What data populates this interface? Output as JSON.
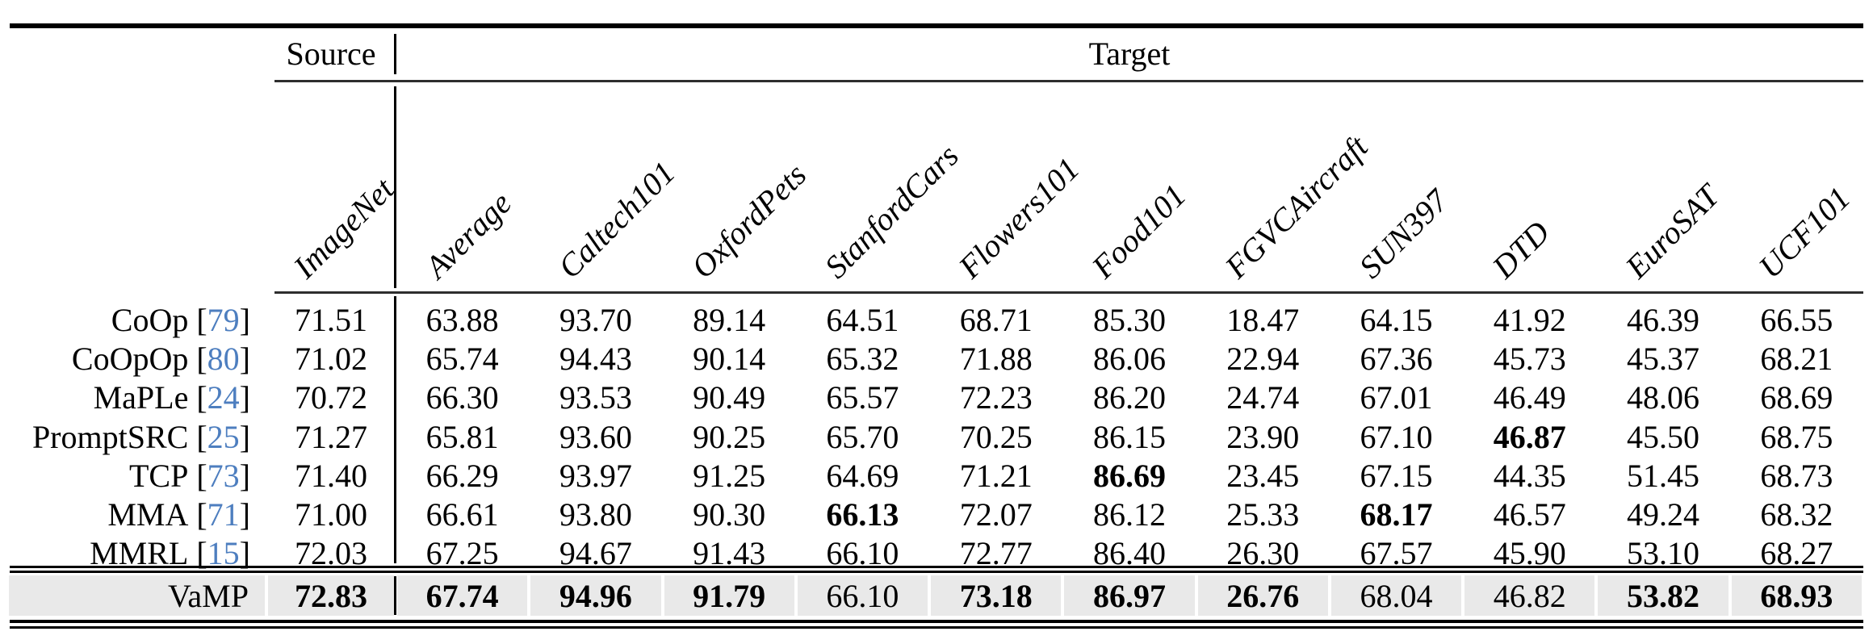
{
  "paper_table": {
    "header": {
      "source": "Source",
      "target": "Target"
    },
    "columns": {
      "source_col": "ImageNet",
      "target_cols": [
        "Average",
        "Caltech101",
        "OxfordPets",
        "StanfordCars",
        "Flowers101",
        "Food101",
        "FGVCAircraft",
        "SUN397",
        "DTD",
        "EuroSAT",
        "UCF101"
      ]
    },
    "ref_brackets": {
      "open": "[",
      "close": "]"
    },
    "rows": [
      {
        "method": "CoOp",
        "ref": "79",
        "highlight": false,
        "cells": [
          [
            "71.51",
            0
          ],
          [
            "63.88",
            0
          ],
          [
            "93.70",
            0
          ],
          [
            "89.14",
            0
          ],
          [
            "64.51",
            0
          ],
          [
            "68.71",
            0
          ],
          [
            "85.30",
            0
          ],
          [
            "18.47",
            0
          ],
          [
            "64.15",
            0
          ],
          [
            "41.92",
            0
          ],
          [
            "46.39",
            0
          ],
          [
            "66.55",
            0
          ]
        ]
      },
      {
        "method": "CoOpOp",
        "ref": "80",
        "highlight": false,
        "cells": [
          [
            "71.02",
            0
          ],
          [
            "65.74",
            0
          ],
          [
            "94.43",
            0
          ],
          [
            "90.14",
            0
          ],
          [
            "65.32",
            0
          ],
          [
            "71.88",
            0
          ],
          [
            "86.06",
            0
          ],
          [
            "22.94",
            0
          ],
          [
            "67.36",
            0
          ],
          [
            "45.73",
            0
          ],
          [
            "45.37",
            0
          ],
          [
            "68.21",
            0
          ]
        ]
      },
      {
        "method": "MaPLe",
        "ref": "24",
        "highlight": false,
        "cells": [
          [
            "70.72",
            0
          ],
          [
            "66.30",
            0
          ],
          [
            "93.53",
            0
          ],
          [
            "90.49",
            0
          ],
          [
            "65.57",
            0
          ],
          [
            "72.23",
            0
          ],
          [
            "86.20",
            0
          ],
          [
            "24.74",
            0
          ],
          [
            "67.01",
            0
          ],
          [
            "46.49",
            0
          ],
          [
            "48.06",
            0
          ],
          [
            "68.69",
            0
          ]
        ]
      },
      {
        "method": "PromptSRC",
        "ref": "25",
        "highlight": false,
        "cells": [
          [
            "71.27",
            0
          ],
          [
            "65.81",
            0
          ],
          [
            "93.60",
            0
          ],
          [
            "90.25",
            0
          ],
          [
            "65.70",
            0
          ],
          [
            "70.25",
            0
          ],
          [
            "86.15",
            0
          ],
          [
            "23.90",
            0
          ],
          [
            "67.10",
            0
          ],
          [
            "46.87",
            1
          ],
          [
            "45.50",
            0
          ],
          [
            "68.75",
            0
          ]
        ]
      },
      {
        "method": "TCP",
        "ref": "73",
        "highlight": false,
        "cells": [
          [
            "71.40",
            0
          ],
          [
            "66.29",
            0
          ],
          [
            "93.97",
            0
          ],
          [
            "91.25",
            0
          ],
          [
            "64.69",
            0
          ],
          [
            "71.21",
            0
          ],
          [
            "86.69",
            1
          ],
          [
            "23.45",
            0
          ],
          [
            "67.15",
            0
          ],
          [
            "44.35",
            0
          ],
          [
            "51.45",
            0
          ],
          [
            "68.73",
            0
          ]
        ]
      },
      {
        "method": "MMA",
        "ref": "71",
        "highlight": false,
        "cells": [
          [
            "71.00",
            0
          ],
          [
            "66.61",
            0
          ],
          [
            "93.80",
            0
          ],
          [
            "90.30",
            0
          ],
          [
            "66.13",
            1
          ],
          [
            "72.07",
            0
          ],
          [
            "86.12",
            0
          ],
          [
            "25.33",
            0
          ],
          [
            "68.17",
            1
          ],
          [
            "46.57",
            0
          ],
          [
            "49.24",
            0
          ],
          [
            "68.32",
            0
          ]
        ]
      },
      {
        "method": "MMRL",
        "ref": "15",
        "highlight": false,
        "cells": [
          [
            "72.03",
            0
          ],
          [
            "67.25",
            0
          ],
          [
            "94.67",
            0
          ],
          [
            "91.43",
            0
          ],
          [
            "66.10",
            0
          ],
          [
            "72.77",
            0
          ],
          [
            "86.40",
            0
          ],
          [
            "26.30",
            0
          ],
          [
            "67.57",
            0
          ],
          [
            "45.90",
            0
          ],
          [
            "53.10",
            0
          ],
          [
            "68.27",
            0
          ]
        ]
      },
      {
        "method": "VaMP",
        "ref": null,
        "highlight": true,
        "cells": [
          [
            "72.83",
            1
          ],
          [
            "67.74",
            1
          ],
          [
            "94.96",
            1
          ],
          [
            "91.79",
            1
          ],
          [
            "66.10",
            0
          ],
          [
            "73.18",
            1
          ],
          [
            "86.97",
            1
          ],
          [
            "26.76",
            1
          ],
          [
            "68.04",
            0
          ],
          [
            "46.82",
            0
          ],
          [
            "53.82",
            1
          ],
          [
            "68.93",
            1
          ]
        ]
      }
    ],
    "colors": {
      "citation_blue": "#4d7ebf",
      "highlight_row_bg": "#e9e9e9"
    }
  }
}
